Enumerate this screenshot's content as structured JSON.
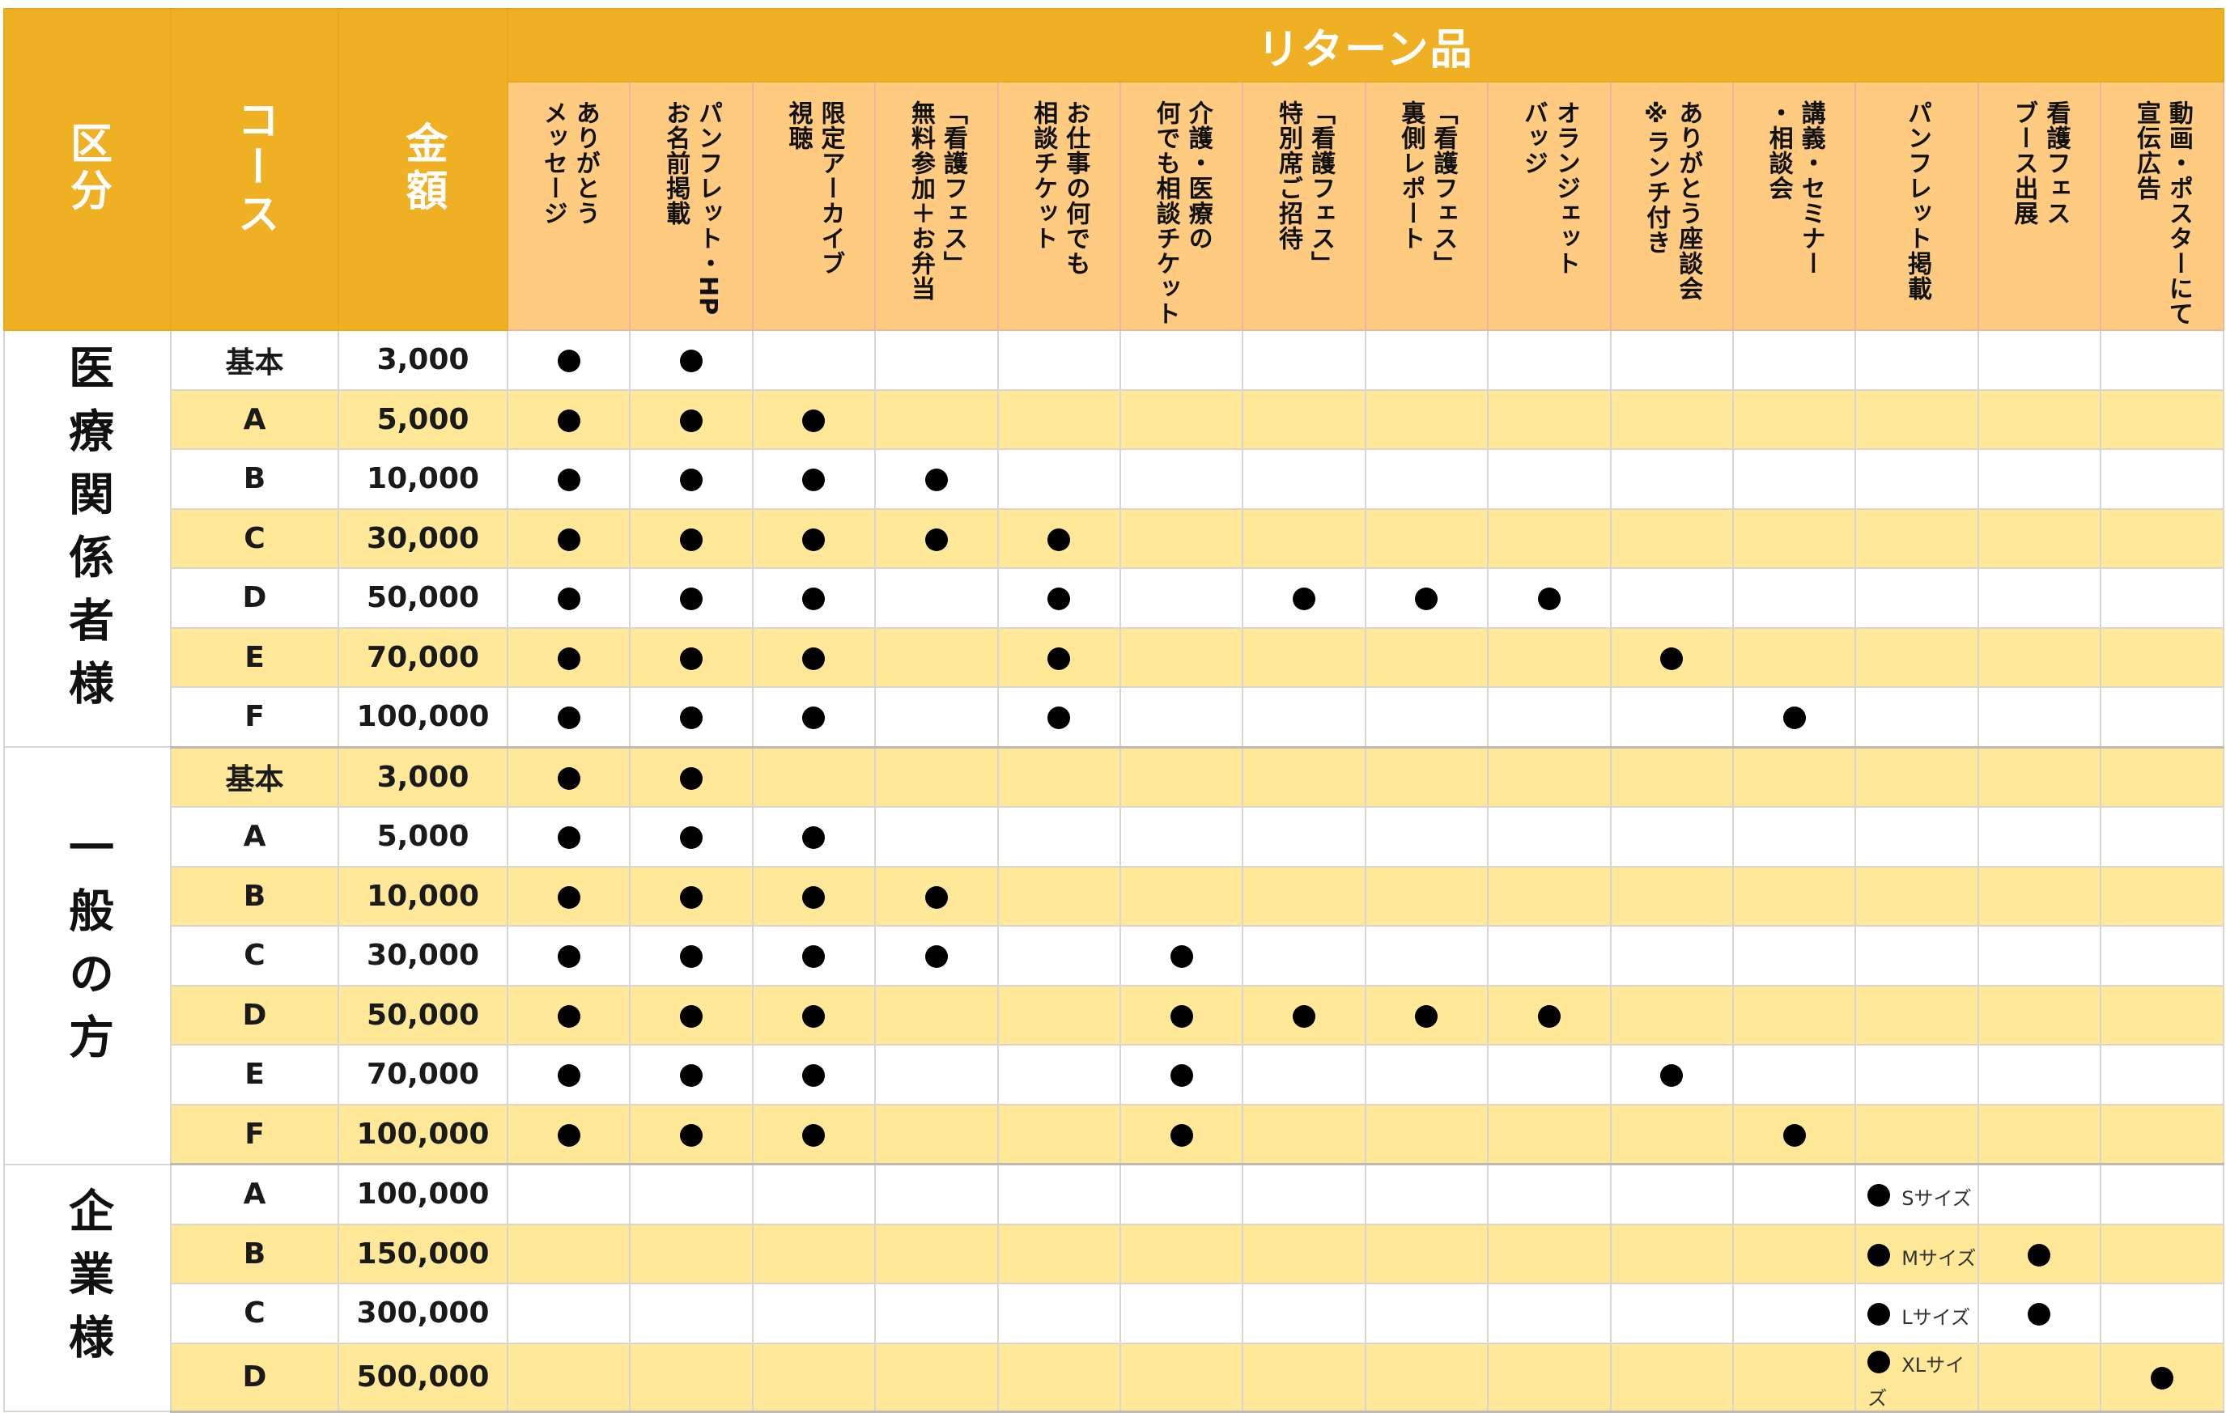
{
  "header": {
    "division": "区分",
    "course": "コース",
    "amount": "金額",
    "returns_title": "リターン品",
    "return_items": [
      "ありがとう\nメッセージ",
      "パンフレット・HP\nお名前掲載",
      "限定アーカイブ\n視聴",
      "「看護フェス」\n無料参加＋お弁当",
      "お仕事の何でも\n相談チケット",
      "介護・医療の\n何でも相談チケット",
      "「看護フェス」\n特別席ご招待",
      "「看護フェス」\n裏側レポート",
      "オランジェット\nバッジ",
      "ありがとう座談会\n※ランチ付き",
      "講義・セミナー\n・相談会",
      "パンフレット掲載",
      "看護フェス\nブース出展",
      "動画・ポスターにて\n宣伝広告"
    ]
  },
  "colors": {
    "header_dark": "#F0B023",
    "header_light": "#FFCB80",
    "stripe": "#FFE999",
    "dot": "#000000"
  },
  "mark_symbol": "●",
  "groups": [
    {
      "label": "医療関係者様",
      "rows": [
        {
          "course": "基本",
          "amount": "3,000",
          "marks": [
            0,
            1
          ]
        },
        {
          "course": "A",
          "amount": "5,000",
          "marks": [
            0,
            1,
            2
          ]
        },
        {
          "course": "B",
          "amount": "10,000",
          "marks": [
            0,
            1,
            2,
            3
          ]
        },
        {
          "course": "C",
          "amount": "30,000",
          "marks": [
            0,
            1,
            2,
            3,
            4
          ]
        },
        {
          "course": "D",
          "amount": "50,000",
          "marks": [
            0,
            1,
            2,
            4,
            6,
            7,
            8
          ]
        },
        {
          "course": "E",
          "amount": "70,000",
          "marks": [
            0,
            1,
            2,
            4,
            9
          ]
        },
        {
          "course": "F",
          "amount": "100,000",
          "marks": [
            0,
            1,
            2,
            4,
            10
          ]
        }
      ]
    },
    {
      "label": "一般の方",
      "rows": [
        {
          "course": "基本",
          "amount": "3,000",
          "marks": [
            0,
            1
          ]
        },
        {
          "course": "A",
          "amount": "5,000",
          "marks": [
            0,
            1,
            2
          ]
        },
        {
          "course": "B",
          "amount": "10,000",
          "marks": [
            0,
            1,
            2,
            3
          ]
        },
        {
          "course": "C",
          "amount": "30,000",
          "marks": [
            0,
            1,
            2,
            3,
            5
          ]
        },
        {
          "course": "D",
          "amount": "50,000",
          "marks": [
            0,
            1,
            2,
            5,
            6,
            7,
            8
          ]
        },
        {
          "course": "E",
          "amount": "70,000",
          "marks": [
            0,
            1,
            2,
            5,
            9
          ]
        },
        {
          "course": "F",
          "amount": "100,000",
          "marks": [
            0,
            1,
            2,
            5,
            10
          ]
        }
      ]
    },
    {
      "label": "企業様",
      "rows": [
        {
          "course": "A",
          "amount": "100,000",
          "marks": [
            11
          ],
          "size_note": "Sサイズ"
        },
        {
          "course": "B",
          "amount": "150,000",
          "marks": [
            11,
            12
          ],
          "size_note": "Mサイズ"
        },
        {
          "course": "C",
          "amount": "300,000",
          "marks": [
            11,
            12
          ],
          "size_note": "Lサイズ"
        },
        {
          "course": "D",
          "amount": "500,000",
          "marks": [
            11,
            13
          ],
          "size_note": "XLサイズ"
        }
      ]
    }
  ]
}
